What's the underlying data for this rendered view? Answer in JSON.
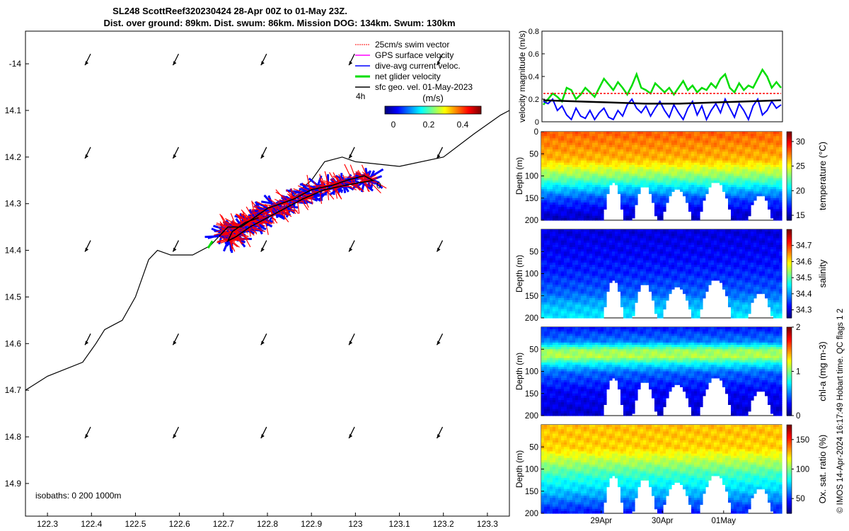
{
  "title_line1": "SL248 ScottReef320230424 28-Apr 00Z to 01-May 23Z.",
  "title_line2": "Dist. over ground: 89km. Dist. swum: 86km. Mission DOG: 134km. Swum: 130km",
  "credit": "© IMOS 14-Apr-2024 16:17:49 Hobart time. QC flags 1  2",
  "chart_data": [
    {
      "type": "map",
      "xlim": [
        122.25,
        123.35
      ],
      "ylim": [
        -14.97,
        -13.93
      ],
      "x_ticks": [
        "122.3",
        "122.4",
        "122.5",
        "122.6",
        "122.7",
        "122.8",
        "122.9",
        "123",
        "123.1",
        "123.2",
        "123.3"
      ],
      "x_tick_values": [
        122.3,
        122.4,
        122.5,
        122.6,
        122.7,
        122.8,
        122.9,
        123.0,
        123.1,
        123.2,
        123.3
      ],
      "y_ticks": [
        "-14",
        "14.1",
        "14.2",
        "14.3",
        "14.4",
        "14.5",
        "14.6",
        "14.7",
        "14.8",
        "14.9"
      ],
      "y_tick_values": [
        -14.0,
        -14.1,
        -14.2,
        -14.3,
        -14.4,
        -14.5,
        -14.6,
        -14.7,
        -14.8,
        -14.9
      ],
      "legend": [
        {
          "label": "25cm/s swim vector",
          "color": "#ff0000"
        },
        {
          "label": "GPS surface velocity",
          "color": "#ff00ff"
        },
        {
          "label": "dive-avg current veloc.",
          "color": "#0000ff"
        },
        {
          "label": "net glider velocity",
          "color": "#00dd00"
        },
        {
          "label": "sfc geo. vel. 01-May-2023",
          "color": "#000000"
        }
      ],
      "legend_note": "4h",
      "colorbar": {
        "label": "(m/s)",
        "ticks": [
          "0",
          "0.2",
          "0.4"
        ],
        "range": [
          0,
          0.5
        ]
      },
      "isobaths_label": "isobaths: 0   200  1000m",
      "end_marker_label": "0",
      "isobath_line": [
        [
          122.25,
          -14.7
        ],
        [
          122.3,
          -14.67
        ],
        [
          122.38,
          -14.64
        ],
        [
          122.41,
          -14.6
        ],
        [
          122.43,
          -14.57
        ],
        [
          122.45,
          -14.56
        ],
        [
          122.47,
          -14.55
        ],
        [
          122.5,
          -14.5
        ],
        [
          122.53,
          -14.42
        ],
        [
          122.55,
          -14.4
        ],
        [
          122.58,
          -14.41
        ],
        [
          122.63,
          -14.41
        ],
        [
          122.67,
          -14.39
        ],
        [
          122.69,
          -14.37
        ],
        [
          122.77,
          -14.32
        ],
        [
          122.85,
          -14.29
        ],
        [
          122.9,
          -14.25
        ],
        [
          122.93,
          -14.21
        ],
        [
          122.97,
          -14.2
        ],
        [
          123.0,
          -14.21
        ],
        [
          123.1,
          -14.22
        ],
        [
          123.2,
          -14.2
        ],
        [
          123.27,
          -14.15
        ],
        [
          123.33,
          -14.11
        ],
        [
          123.35,
          -14.1
        ]
      ],
      "track": [
        [
          122.69,
          -14.37
        ],
        [
          122.71,
          -14.35
        ],
        [
          122.74,
          -14.35
        ],
        [
          122.77,
          -14.33
        ],
        [
          122.8,
          -14.31
        ],
        [
          122.83,
          -14.3
        ],
        [
          122.86,
          -14.29
        ],
        [
          122.9,
          -14.27
        ],
        [
          122.95,
          -14.26
        ],
        [
          122.98,
          -14.25
        ],
        [
          123.02,
          -14.24
        ],
        [
          123.04,
          -14.25
        ],
        [
          122.98,
          -14.26
        ],
        [
          122.93,
          -14.27
        ],
        [
          122.88,
          -14.29
        ],
        [
          122.84,
          -14.31
        ],
        [
          122.8,
          -14.33
        ],
        [
          122.76,
          -14.35
        ],
        [
          122.73,
          -14.37
        ],
        [
          122.71,
          -14.38
        ],
        [
          122.72,
          -14.36
        ],
        [
          122.75,
          -14.34
        ],
        [
          122.78,
          -14.33
        ]
      ],
      "geo_vector_grid": {
        "lons": [
          122.39,
          122.59,
          122.79,
          122.99,
          123.19
        ],
        "lats": [
          -14.0,
          -14.2,
          -14.4,
          -14.6,
          -14.8
        ]
      }
    },
    {
      "type": "line",
      "ylabel": "velocity magnitude (m/s)",
      "ylim": [
        0,
        0.8
      ],
      "y_ticks": [
        "0",
        "0.2",
        "0.4",
        "0.6",
        "0.8"
      ],
      "series": [
        {
          "name": "net glider velocity",
          "color": "#00dd00",
          "values": [
            0.15,
            0.2,
            0.25,
            0.22,
            0.18,
            0.3,
            0.28,
            0.2,
            0.24,
            0.3,
            0.26,
            0.22,
            0.3,
            0.38,
            0.33,
            0.28,
            0.35,
            0.3,
            0.24,
            0.32,
            0.42,
            0.3,
            0.28,
            0.25,
            0.34,
            0.3,
            0.26,
            0.3,
            0.24,
            0.3,
            0.36,
            0.28,
            0.32,
            0.26,
            0.3,
            0.28,
            0.34,
            0.3,
            0.38,
            0.42,
            0.3,
            0.26,
            0.34,
            0.28,
            0.32,
            0.3,
            0.38,
            0.46,
            0.4,
            0.3,
            0.35,
            0.3
          ]
        },
        {
          "name": "dive-avg current veloc.",
          "color": "#0000ff",
          "values": [
            0.18,
            0.16,
            0.2,
            0.1,
            0.14,
            0.06,
            0.02,
            0.12,
            0.05,
            0.03,
            0.1,
            0.02,
            0.08,
            0.12,
            0.04,
            0.02,
            0.1,
            0.05,
            0.15,
            0.2,
            0.12,
            0.08,
            0.14,
            0.05,
            0.12,
            0.18,
            0.1,
            0.04,
            0.15,
            0.08,
            0.02,
            0.12,
            0.18,
            0.06,
            0.14,
            0.02,
            0.1,
            0.16,
            0.08,
            0.2,
            0.12,
            0.04,
            0.16,
            0.1,
            0.02,
            0.14,
            0.2,
            0.06,
            0.1,
            0.18,
            0.12,
            0.15
          ]
        },
        {
          "name": "25cm/s swim vector",
          "color": "#ff0000",
          "values": [
            0.25,
            0.25
          ]
        },
        {
          "name": "sfc geo. vel.",
          "color": "#000000",
          "values": [
            0.19,
            0.18,
            0.17,
            0.16,
            0.16,
            0.17,
            0.18,
            0.19
          ]
        }
      ]
    },
    {
      "type": "heatmap",
      "ylabel": "Depth (m)",
      "clabel": "temperature (°C)",
      "y_ticks": [
        "0",
        "50",
        "100",
        "150",
        "200"
      ],
      "c_ticks": [
        "15",
        "20",
        "25",
        "30"
      ],
      "c_tick_values": [
        15,
        20,
        25,
        30
      ],
      "crange": [
        14,
        32
      ],
      "profile": [
        [
          0,
          28
        ],
        [
          60,
          26.5
        ],
        [
          100,
          23
        ],
        [
          125,
          20
        ],
        [
          150,
          17.5
        ],
        [
          175,
          16
        ],
        [
          200,
          15
        ]
      ]
    },
    {
      "type": "heatmap",
      "ylabel": "Depth (m)",
      "clabel": "salinity",
      "y_ticks": [
        "50",
        "100",
        "150",
        "200"
      ],
      "c_ticks": [
        "34.3",
        "34.4",
        "34.5",
        "34.6",
        "34.7"
      ],
      "c_tick_values": [
        34.3,
        34.4,
        34.5,
        34.6,
        34.7
      ],
      "crange": [
        34.25,
        34.8
      ],
      "profile": [
        [
          0,
          34.3
        ],
        [
          60,
          34.32
        ],
        [
          100,
          34.34
        ],
        [
          140,
          34.37
        ],
        [
          170,
          34.42
        ],
        [
          200,
          34.45
        ]
      ]
    },
    {
      "type": "heatmap",
      "ylabel": "Depth (m)",
      "clabel": "chl-a (mg m-3)",
      "y_ticks": [
        "50",
        "100",
        "150",
        "200"
      ],
      "c_ticks": [
        "0",
        "1",
        "2"
      ],
      "c_tick_values": [
        0,
        1,
        2
      ],
      "crange": [
        0,
        2
      ],
      "profile": [
        [
          0,
          0.3
        ],
        [
          30,
          0.5
        ],
        [
          50,
          1.05
        ],
        [
          65,
          1.1
        ],
        [
          80,
          0.75
        ],
        [
          100,
          0.45
        ],
        [
          140,
          0.25
        ],
        [
          200,
          0.15
        ]
      ]
    },
    {
      "type": "heatmap",
      "ylabel": "Depth (m)",
      "clabel": "Ox. sat. ratio (%)",
      "y_ticks": [
        "50",
        "100",
        "150",
        "200"
      ],
      "c_ticks": [
        "50",
        "100",
        "150"
      ],
      "c_tick_values": [
        50,
        100,
        150
      ],
      "crange": [
        25,
        175
      ],
      "profile": [
        [
          0,
          128
        ],
        [
          50,
          125
        ],
        [
          80,
          108
        ],
        [
          110,
          90
        ],
        [
          150,
          72
        ],
        [
          180,
          55
        ],
        [
          200,
          45
        ]
      ],
      "x_ticks": [
        "29Apr",
        "30Apr",
        "01May"
      ],
      "x_tick_values": [
        1,
        2,
        3
      ],
      "xlim": [
        0.02,
        3.95
      ]
    }
  ]
}
